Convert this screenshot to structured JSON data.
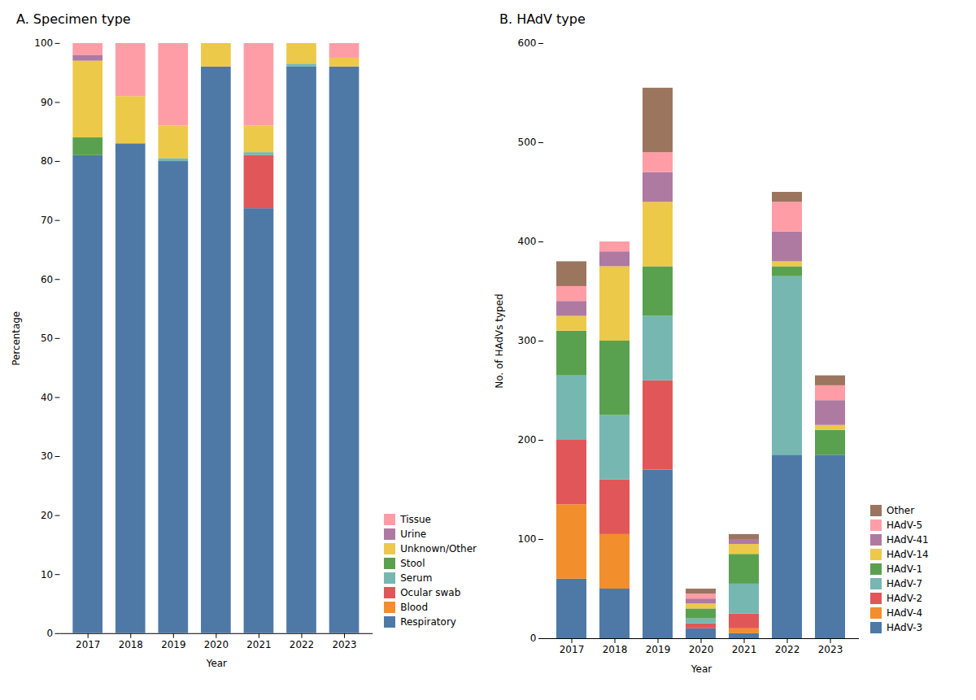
{
  "chart_data": [
    {
      "type": "bar",
      "stacked": true,
      "title": "A. Specimen type",
      "xlabel": "Year",
      "ylabel": "Percentage",
      "categories": [
        "2017",
        "2018",
        "2019",
        "2020",
        "2021",
        "2022",
        "2023"
      ],
      "series": [
        {
          "name": "Respiratory",
          "values": [
            81,
            83,
            80,
            96,
            72,
            96,
            96
          ]
        },
        {
          "name": "Blood",
          "values": [
            0,
            0,
            0,
            0,
            0,
            0,
            0
          ]
        },
        {
          "name": "Ocular swab",
          "values": [
            0,
            0,
            0,
            0,
            9,
            0,
            0
          ]
        },
        {
          "name": "Serum",
          "values": [
            0,
            0,
            0.5,
            0,
            0.5,
            0.5,
            0
          ]
        },
        {
          "name": "Stool",
          "values": [
            3,
            0,
            0,
            0,
            0,
            0,
            0
          ]
        },
        {
          "name": "Unknown/Other",
          "values": [
            13,
            8,
            5.5,
            4,
            4.5,
            3.5,
            1.5
          ]
        },
        {
          "name": "Urine",
          "values": [
            1,
            0,
            0,
            0,
            0,
            0,
            0
          ]
        },
        {
          "name": "Tissue",
          "values": [
            2,
            9,
            14,
            0,
            14,
            0,
            2.5
          ]
        }
      ],
      "ylim": [
        0,
        100
      ],
      "yticks": [
        0,
        10,
        20,
        30,
        40,
        50,
        60,
        70,
        80,
        90,
        100
      ],
      "grid": false,
      "legend": "lower right"
    },
    {
      "type": "bar",
      "stacked": true,
      "title": "B. HAdV type",
      "xlabel": "Year",
      "ylabel": "No. of HAdVs typed",
      "categories": [
        "2017",
        "2018",
        "2019",
        "2020",
        "2021",
        "2022",
        "2023"
      ],
      "series": [
        {
          "name": "HAdV-3",
          "values": [
            60,
            50,
            170,
            10,
            5,
            185,
            185
          ]
        },
        {
          "name": "HAdV-4",
          "values": [
            75,
            55,
            0,
            0,
            5,
            0,
            0
          ]
        },
        {
          "name": "HAdV-2",
          "values": [
            65,
            55,
            90,
            5,
            15,
            0,
            0
          ]
        },
        {
          "name": "HAdV-7",
          "values": [
            65,
            65,
            65,
            5,
            30,
            180,
            0
          ]
        },
        {
          "name": "HAdV-1",
          "values": [
            45,
            75,
            50,
            10,
            30,
            10,
            25
          ]
        },
        {
          "name": "HAdV-14",
          "values": [
            15,
            75,
            65,
            5,
            10,
            5,
            5
          ]
        },
        {
          "name": "HAdV-41",
          "values": [
            15,
            15,
            30,
            5,
            5,
            30,
            25
          ]
        },
        {
          "name": "HAdV-5",
          "values": [
            15,
            10,
            20,
            5,
            0,
            30,
            15
          ]
        },
        {
          "name": "Other",
          "values": [
            25,
            0,
            65,
            5,
            5,
            10,
            10
          ]
        }
      ],
      "ylim": [
        0,
        600
      ],
      "yticks": [
        0,
        100,
        200,
        300,
        400,
        500,
        600
      ],
      "grid": false,
      "legend": "lower right"
    }
  ]
}
